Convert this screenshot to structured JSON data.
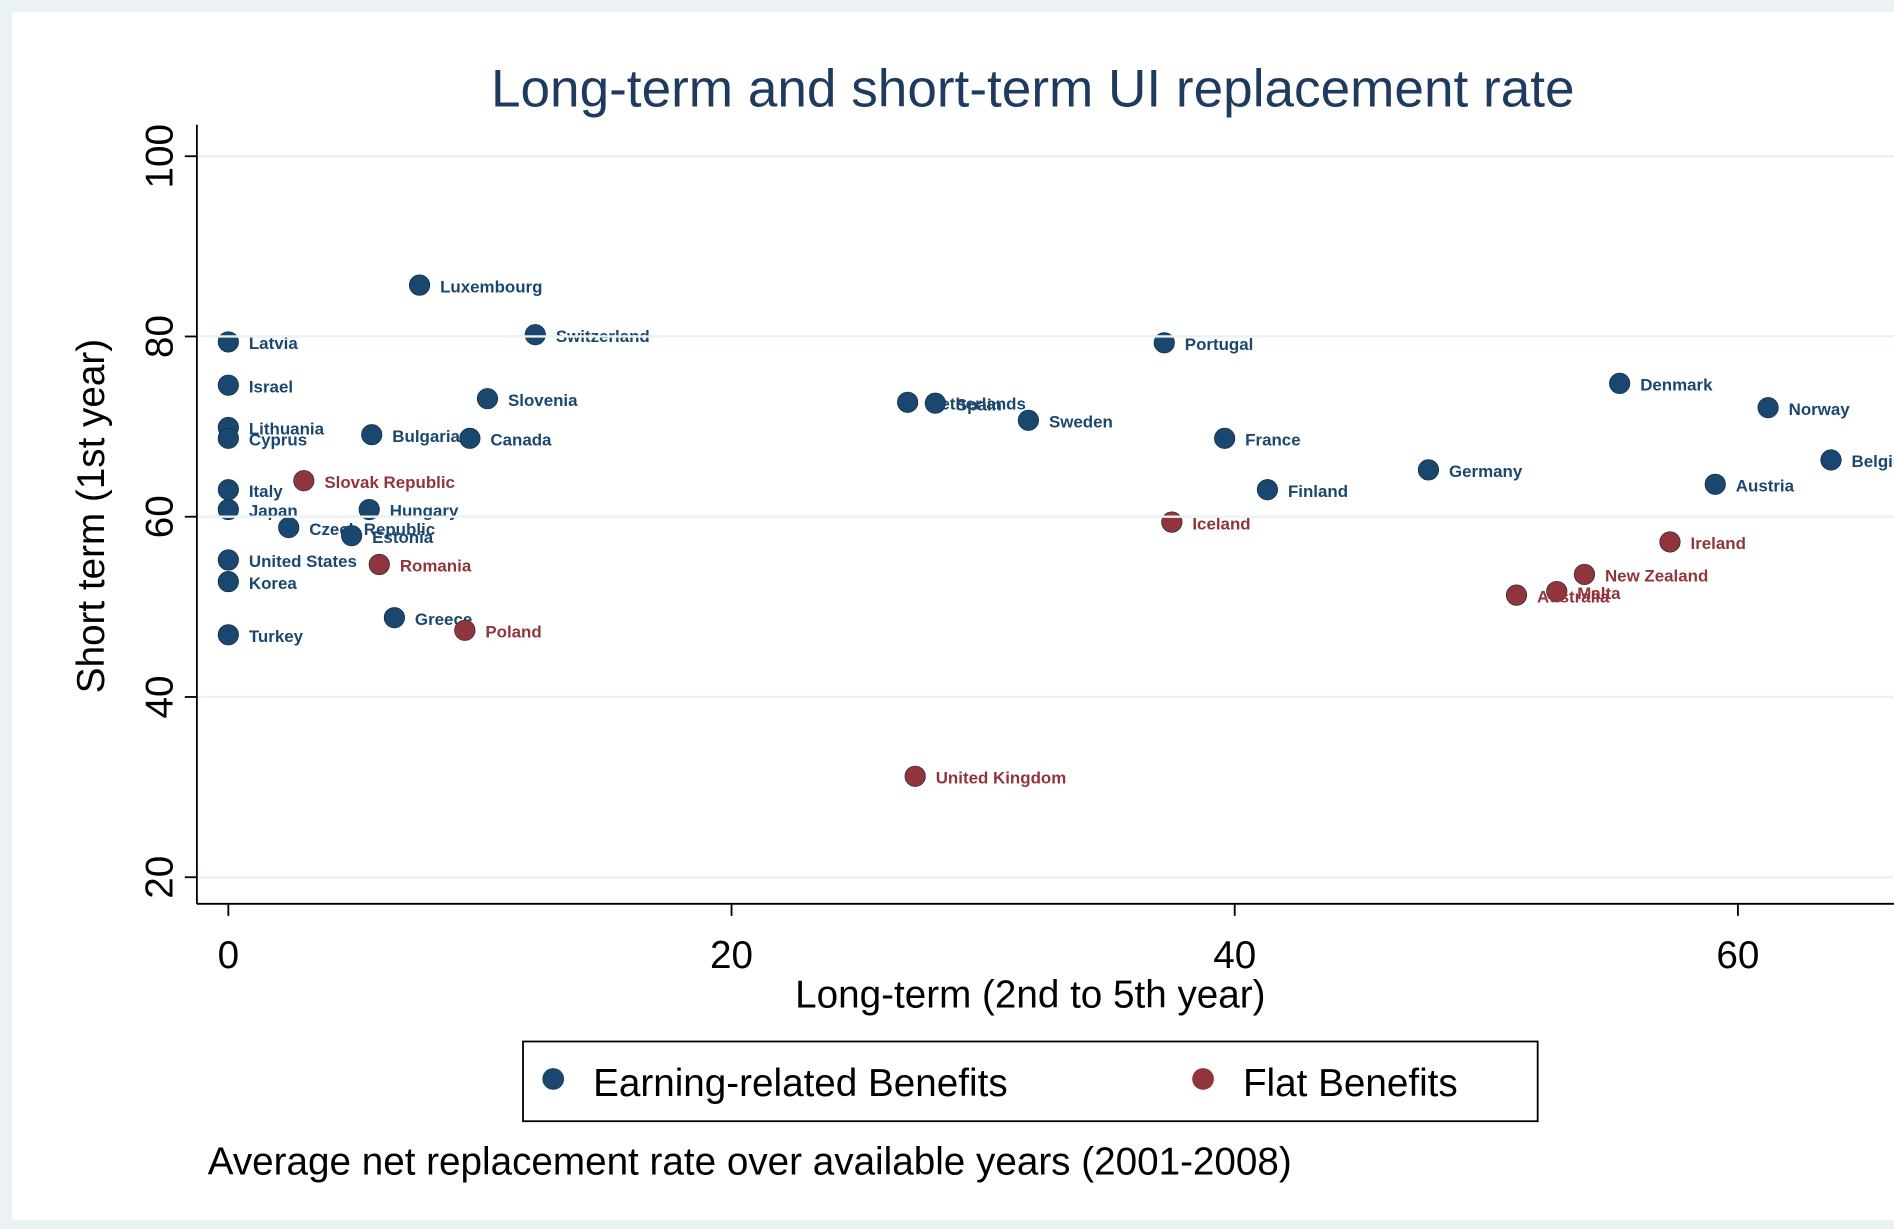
{
  "chart_data": {
    "type": "scatter",
    "title": "Long-term and short-term UI replacement rate",
    "x_label": "Long-term  (2nd to 5th year)",
    "y_label": "Short term (1st year)",
    "note": "Average net replacement rate over available years (2001-2008)",
    "xlim": [
      -1.25,
      65.1
    ],
    "ylim": [
      17.05,
      103.5
    ],
    "xticks": [
      0,
      20,
      40,
      60
    ],
    "yticks": [
      20,
      40,
      60,
      80,
      100
    ],
    "grid": true,
    "legend": "bottom",
    "series": [
      {
        "name": "Earning-related Benefits",
        "color": "#1a476f",
        "labels": [
          "Latvia",
          "Israel",
          "Lithuania",
          "Cyprus",
          "Italy",
          "Japan",
          "United States",
          "Korea",
          "Turkey",
          "Luxembourg",
          "Switzerland",
          "Slovenia",
          "Bulgaria",
          "Canada",
          "Hungary",
          "Czech Republic",
          "Estonia",
          "Greece",
          "Netherlands",
          "Spain",
          "Sweden",
          "Portugal",
          "France",
          "Finland",
          "Germany",
          "Denmark",
          "Norway",
          "Austria",
          "Belgium"
        ],
        "x": [
          0,
          0,
          0,
          0,
          0,
          0,
          0,
          0,
          0,
          7.6,
          12.2,
          10.3,
          5.7,
          9.6,
          5.6,
          2.4,
          4.9,
          6.6,
          27.0,
          28.1,
          31.8,
          37.2,
          39.6,
          41.3,
          47.7,
          55.3,
          61.2,
          59.1,
          63.7
        ],
        "values": [
          79.4,
          74.6,
          69.9,
          68.7,
          63.0,
          60.8,
          55.2,
          52.8,
          46.9,
          85.7,
          80.2,
          73.1,
          69.1,
          68.7,
          60.8,
          58.8,
          57.9,
          48.8,
          72.7,
          72.6,
          70.7,
          79.3,
          68.7,
          63.0,
          65.2,
          74.8,
          72.1,
          63.6,
          66.3
        ]
      },
      {
        "name": "Flat Benefits",
        "color": "#90353b",
        "labels": [
          "Slovak Republic",
          "Romania",
          "Poland",
          "United Kingdom",
          "Iceland",
          "Ireland",
          "New Zealand",
          "Malta",
          "Australia"
        ],
        "x": [
          3.0,
          6.0,
          9.4,
          27.3,
          37.5,
          57.3,
          53.9,
          52.8,
          51.2
        ],
        "values": [
          64.0,
          54.7,
          47.4,
          31.2,
          59.4,
          57.2,
          53.6,
          51.7,
          51.3
        ]
      }
    ]
  }
}
